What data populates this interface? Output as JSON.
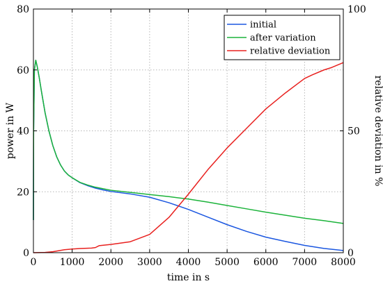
{
  "chart_data": {
    "type": "line",
    "xlabel": "time in s",
    "ylabel": "power in W",
    "y2label": "relative deviation in %",
    "xlim": [
      0,
      8000
    ],
    "ylim": [
      0,
      80
    ],
    "y2lim": [
      0,
      100
    ],
    "xticks": [
      0,
      1000,
      2000,
      3000,
      4000,
      5000,
      6000,
      7000,
      8000
    ],
    "yticks": [
      0,
      20,
      40,
      60,
      80
    ],
    "y2ticks": [
      0,
      50,
      100
    ],
    "grid": true,
    "legend_position": "top-right",
    "colors": {
      "initial": "#1a56e0",
      "after": "#1bb33a",
      "deviation": "#e8201e"
    },
    "series": [
      {
        "name": "initial",
        "axis": "left",
        "x": [
          0,
          5,
          25,
          60,
          100,
          150,
          200,
          300,
          400,
          500,
          600,
          700,
          800,
          900,
          1000,
          1200,
          1400,
          1600,
          1800,
          2000,
          2500,
          3000,
          3500,
          4000,
          4500,
          5000,
          5500,
          6000,
          6500,
          7000,
          7500,
          8000
        ],
        "y": [
          10.7,
          40,
          60,
          63.2,
          61,
          57.5,
          53.5,
          46,
          40,
          35.2,
          31.5,
          28.8,
          26.8,
          25.5,
          24.6,
          23,
          22,
          21.2,
          20.6,
          20.1,
          19.3,
          18.2,
          16.4,
          14.2,
          11.7,
          9.2,
          7,
          5.1,
          3.7,
          2.4,
          1.4,
          0.7
        ]
      },
      {
        "name": "after variation",
        "axis": "left",
        "x": [
          0,
          5,
          25,
          60,
          100,
          150,
          200,
          300,
          400,
          500,
          600,
          700,
          800,
          900,
          1000,
          1200,
          1400,
          1600,
          1800,
          2000,
          2500,
          3000,
          3500,
          4000,
          4500,
          5000,
          5500,
          6000,
          6500,
          7000,
          7500,
          8000
        ],
        "y": [
          10.7,
          40,
          60,
          63.2,
          61,
          57.5,
          53.5,
          46,
          40,
          35.2,
          31.5,
          28.8,
          26.8,
          25.5,
          24.6,
          23.1,
          22.2,
          21.5,
          21,
          20.5,
          19.8,
          19.1,
          18.4,
          17.6,
          16.6,
          15.5,
          14.4,
          13.3,
          12.3,
          11.3,
          10.5,
          9.6
        ]
      },
      {
        "name": "relative deviation",
        "axis": "right",
        "x": [
          0,
          300,
          500,
          800,
          1000,
          1200,
          1500,
          1600,
          1700,
          2000,
          2500,
          3000,
          3500,
          4000,
          4500,
          5000,
          5500,
          6000,
          6500,
          7000,
          7200,
          7500,
          7700,
          8000
        ],
        "y": [
          0,
          0.1,
          0.4,
          1.2,
          1.5,
          1.7,
          1.9,
          2.1,
          2.9,
          3.4,
          4.5,
          7.5,
          14.5,
          24,
          34,
          43,
          51,
          59,
          65.5,
          71.5,
          73,
          75,
          76,
          78
        ]
      }
    ]
  }
}
